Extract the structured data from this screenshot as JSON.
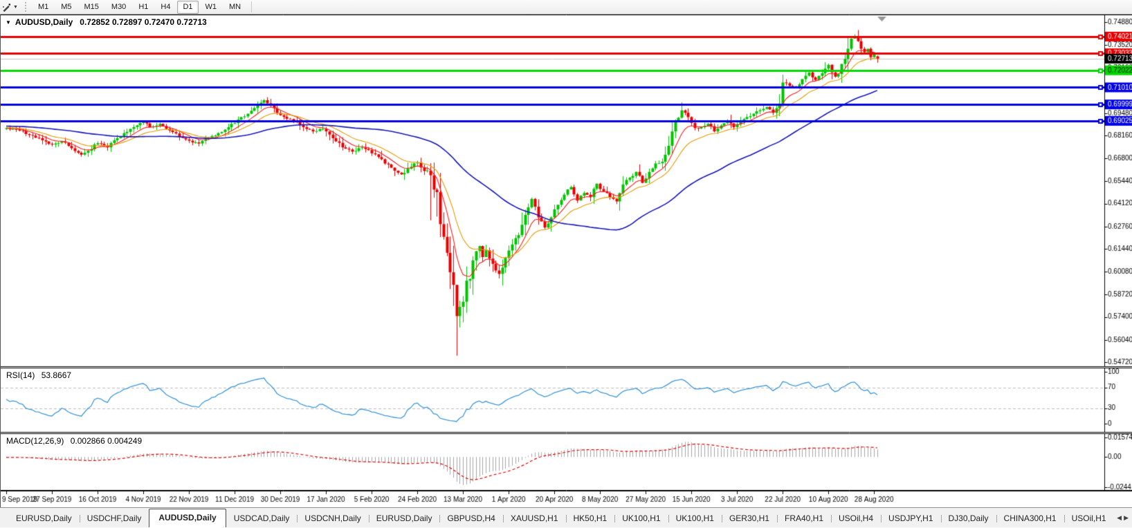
{
  "toolbar": {
    "timeframes": [
      "M1",
      "M5",
      "M15",
      "M30",
      "H1",
      "H4",
      "D1",
      "W1",
      "MN"
    ],
    "active_timeframe": "D1"
  },
  "icons": {
    "title_marker": "▼",
    "tool_caret": "▼",
    "tab_scroll_left": "◀",
    "tab_scroll_right": "▶"
  },
  "chart_header": {
    "symbol_label": "AUDUSD,Daily",
    "ohlc": "0.72852 0.72897 0.72470 0.72713"
  },
  "chart_data": {
    "type": "candlestick",
    "symbol": "AUDUSD",
    "timeframe": "Daily",
    "last_bar": {
      "open": 0.72852,
      "high": 0.72897,
      "low": 0.7247,
      "close": 0.72713
    },
    "current_price": 0.72713,
    "y_range": {
      "min": 0.5472,
      "max": 0.7488
    },
    "y_ticks": [
      0.7488,
      0.7352,
      0.7216,
      0.7084,
      0.6948,
      0.6816,
      0.668,
      0.6544,
      0.6412,
      0.6276,
      0.6144,
      0.6008,
      0.5872,
      0.574,
      0.5604,
      0.5472
    ],
    "x_labels": [
      {
        "index": 0,
        "label": "9 Sep 2019"
      },
      {
        "index": 14,
        "label": "27 Sep 2019"
      },
      {
        "index": 28,
        "label": "16 Oct 2019"
      },
      {
        "index": 42,
        "label": "4 Nov 2019"
      },
      {
        "index": 56,
        "label": "22 Nov 2019"
      },
      {
        "index": 70,
        "label": "11 Dec 2019"
      },
      {
        "index": 84,
        "label": "30 Dec 2019"
      },
      {
        "index": 98,
        "label": "17 Jan 2020"
      },
      {
        "index": 112,
        "label": "5 Feb 2020"
      },
      {
        "index": 126,
        "label": "24 Feb 2020"
      },
      {
        "index": 140,
        "label": "13 Mar 2020"
      },
      {
        "index": 154,
        "label": "1 Apr 2020"
      },
      {
        "index": 168,
        "label": "20 Apr 2020"
      },
      {
        "index": 182,
        "label": "8 May 2020"
      },
      {
        "index": 196,
        "label": "27 May 2020"
      },
      {
        "index": 210,
        "label": "15 Jun 2020"
      },
      {
        "index": 224,
        "label": "3 Jul 2020"
      },
      {
        "index": 238,
        "label": "22 Jul 2020"
      },
      {
        "index": 252,
        "label": "10 Aug 2020"
      },
      {
        "index": 266,
        "label": "28 Aug 2020"
      }
    ],
    "bars_total": 268,
    "close_anchors": [
      [
        0,
        0.686
      ],
      [
        4,
        0.6845
      ],
      [
        8,
        0.6815
      ],
      [
        12,
        0.678
      ],
      [
        14,
        0.6762
      ],
      [
        17,
        0.678
      ],
      [
        20,
        0.674
      ],
      [
        23,
        0.6702
      ],
      [
        25,
        0.6725
      ],
      [
        28,
        0.677
      ],
      [
        31,
        0.6745
      ],
      [
        34,
        0.68
      ],
      [
        38,
        0.6855
      ],
      [
        42,
        0.6895
      ],
      [
        44,
        0.6865
      ],
      [
        47,
        0.6885
      ],
      [
        50,
        0.6845
      ],
      [
        53,
        0.681
      ],
      [
        56,
        0.6785
      ],
      [
        59,
        0.6768
      ],
      [
        62,
        0.68
      ],
      [
        65,
        0.683
      ],
      [
        68,
        0.6865
      ],
      [
        71,
        0.691
      ],
      [
        74,
        0.6945
      ],
      [
        77,
        0.6995
      ],
      [
        79,
        0.7025
      ],
      [
        81,
        0.6995
      ],
      [
        83,
        0.695
      ],
      [
        86,
        0.6915
      ],
      [
        89,
        0.69
      ],
      [
        91,
        0.6865
      ],
      [
        94,
        0.684
      ],
      [
        97,
        0.6855
      ],
      [
        100,
        0.68
      ],
      [
        103,
        0.6745
      ],
      [
        106,
        0.672
      ],
      [
        109,
        0.6745
      ],
      [
        112,
        0.671
      ],
      [
        115,
        0.6675
      ],
      [
        118,
        0.6625
      ],
      [
        121,
        0.6585
      ],
      [
        124,
        0.663
      ],
      [
        126,
        0.6655
      ],
      [
        128,
        0.6605
      ],
      [
        130,
        0.658
      ],
      [
        131,
        0.6495
      ],
      [
        132,
        0.648
      ],
      [
        133,
        0.629
      ],
      [
        134,
        0.6215
      ],
      [
        135,
        0.612
      ],
      [
        136,
        0.6005
      ],
      [
        137,
        0.593
      ],
      [
        138,
        0.5745
      ],
      [
        139,
        0.58
      ],
      [
        140,
        0.583
      ],
      [
        141,
        0.5955
      ],
      [
        142,
        0.5965
      ],
      [
        143,
        0.6075
      ],
      [
        144,
        0.613
      ],
      [
        145,
        0.616
      ],
      [
        146,
        0.6095
      ],
      [
        147,
        0.6135
      ],
      [
        149,
        0.6055
      ],
      [
        151,
        0.5995
      ],
      [
        153,
        0.609
      ],
      [
        155,
        0.617
      ],
      [
        157,
        0.6225
      ],
      [
        159,
        0.6345
      ],
      [
        161,
        0.644
      ],
      [
        163,
        0.633
      ],
      [
        165,
        0.627
      ],
      [
        167,
        0.633
      ],
      [
        169,
        0.6405
      ],
      [
        171,
        0.6465
      ],
      [
        173,
        0.651
      ],
      [
        175,
        0.643
      ],
      [
        177,
        0.6475
      ],
      [
        179,
        0.645
      ],
      [
        181,
        0.653
      ],
      [
        183,
        0.6485
      ],
      [
        185,
        0.645
      ],
      [
        187,
        0.6425
      ],
      [
        189,
        0.6525
      ],
      [
        191,
        0.6565
      ],
      [
        193,
        0.66
      ],
      [
        195,
        0.6535
      ],
      [
        197,
        0.66
      ],
      [
        199,
        0.665
      ],
      [
        201,
        0.666
      ],
      [
        203,
        0.6755
      ],
      [
        205,
        0.6895
      ],
      [
        207,
        0.6965
      ],
      [
        209,
        0.6925
      ],
      [
        211,
        0.686
      ],
      [
        213,
        0.6865
      ],
      [
        215,
        0.6885
      ],
      [
        217,
        0.684
      ],
      [
        219,
        0.6875
      ],
      [
        221,
        0.6905
      ],
      [
        223,
        0.6865
      ],
      [
        225,
        0.69
      ],
      [
        227,
        0.6925
      ],
      [
        229,
        0.6945
      ],
      [
        231,
        0.6965
      ],
      [
        233,
        0.6985
      ],
      [
        235,
        0.695
      ],
      [
        237,
        0.7005
      ],
      [
        238,
        0.713
      ],
      [
        240,
        0.711
      ],
      [
        242,
        0.7095
      ],
      [
        244,
        0.715
      ],
      [
        246,
        0.719
      ],
      [
        248,
        0.7145
      ],
      [
        250,
        0.7185
      ],
      [
        252,
        0.7235
      ],
      [
        253,
        0.719
      ],
      [
        254,
        0.7165
      ],
      [
        255,
        0.718
      ],
      [
        256,
        0.724
      ],
      [
        257,
        0.727
      ],
      [
        258,
        0.733
      ],
      [
        259,
        0.739
      ],
      [
        260,
        0.7405
      ],
      [
        261,
        0.7375
      ],
      [
        262,
        0.733
      ],
      [
        263,
        0.731
      ],
      [
        264,
        0.733
      ],
      [
        265,
        0.728
      ],
      [
        266,
        0.73
      ],
      [
        267,
        0.72713
      ]
    ],
    "special_wicks": [
      {
        "index": 79,
        "high": 0.7032
      },
      {
        "index": 130,
        "low": 0.6313
      },
      {
        "index": 133,
        "low": 0.6213
      },
      {
        "index": 138,
        "low": 0.551
      },
      {
        "index": 207,
        "high": 0.7013
      },
      {
        "index": 260,
        "high": 0.7414
      }
    ],
    "horizontal_lines": [
      {
        "price": 0.74021,
        "label": "0.74021",
        "color": "#e60000",
        "text": "#ffffff"
      },
      {
        "price": 0.73033,
        "label": "0.73033",
        "color": "#e60000",
        "text": "#ffffff"
      },
      {
        "price": 0.72022,
        "label": "0.72022",
        "color": "#00d900",
        "text": "#000000"
      },
      {
        "price": 0.7101,
        "label": "0.71010",
        "color": "#0000e6",
        "text": "#ffffff"
      },
      {
        "price": 0.69999,
        "label": "0.69999",
        "color": "#0000e6",
        "text": "#ffffff"
      },
      {
        "price": 0.69025,
        "label": "0.69025",
        "color": "#0000e6",
        "text": "#ffffff"
      }
    ],
    "current_price_badge": {
      "label": "0.72713",
      "color": "#000000",
      "text": "#ffffff",
      "line_color": "#c4c4c4"
    },
    "moving_averages": [
      {
        "type": "ema",
        "period": 8,
        "color": "#ff1a1a"
      },
      {
        "type": "ema",
        "period": 17,
        "color": "#e69b00"
      },
      {
        "type": "sma",
        "period": 55,
        "color": "#1717b8"
      }
    ],
    "candle_colors": {
      "bull": "#00c400",
      "bear": "#e80000"
    },
    "rsi": {
      "name": "RSI(14)",
      "value": "53.8667",
      "period": 14,
      "levels": [
        70,
        30
      ],
      "scale": [
        "100",
        "70",
        "30",
        "0"
      ],
      "color": "#3d97d8",
      "level_color": "#bdbdbd"
    },
    "macd": {
      "name": "MACD(12,26,9)",
      "values": "0.002866 0.004249",
      "fast": 12,
      "slow": 26,
      "signal": 9,
      "scale": [
        "0.015741",
        "0.00",
        "-0.02441"
      ],
      "scale_max": 0.015741,
      "scale_min": -0.02441,
      "hist_color": "#a3a3a3",
      "signal_color": "#e60000"
    }
  },
  "tabs": {
    "items": [
      {
        "label": "EURUSD,Daily",
        "active": false
      },
      {
        "label": "USDCHF,Daily",
        "active": false
      },
      {
        "label": "AUDUSD,Daily",
        "active": true
      },
      {
        "label": "USDCAD,Daily",
        "active": false
      },
      {
        "label": "USDCNH,Daily",
        "active": false
      },
      {
        "label": "EURUSD,Daily",
        "active": false
      },
      {
        "label": "GBPUSD,H4",
        "active": false
      },
      {
        "label": "XAUUSD,H1",
        "active": false
      },
      {
        "label": "HK50,H1",
        "active": false
      },
      {
        "label": "UK100,H1",
        "active": false
      },
      {
        "label": "UK100,H1",
        "active": false
      },
      {
        "label": "GER30,H1",
        "active": false
      },
      {
        "label": "FRA40,H1",
        "active": false
      },
      {
        "label": "USOil,H4",
        "active": false
      },
      {
        "label": "USDJPY,H1",
        "active": false
      },
      {
        "label": "DJ30,Daily",
        "active": false
      },
      {
        "label": "CHINA300,H1",
        "active": false
      },
      {
        "label": "USOil,H1",
        "active": false
      }
    ]
  }
}
